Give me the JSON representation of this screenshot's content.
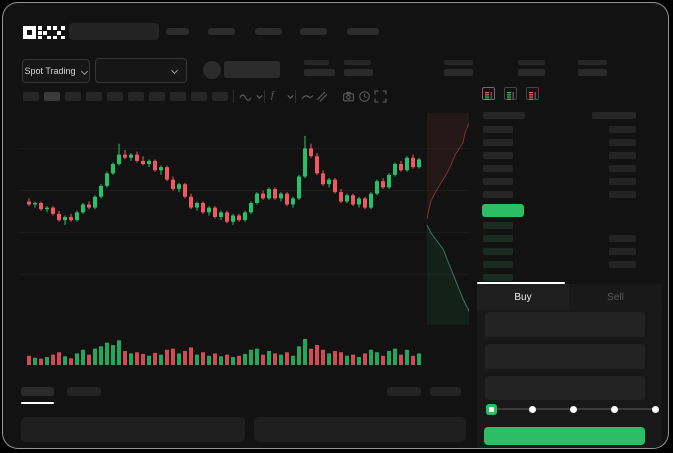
{
  "brand": "OKX",
  "header": {
    "mode_selector_label": "Spot Trading",
    "nav_placeholder_count": 5
  },
  "toolbar": {
    "timeframe_count": 10,
    "active_index": 1,
    "icons": [
      "chart-style-icon",
      "chevron-down-icon",
      "indicator-icon",
      "chevron-down-icon",
      "line-tool-icon",
      "compare-icon",
      "camera-icon",
      "history-clock-icon",
      "fullscreen-icon"
    ]
  },
  "order_book": {
    "view_toggles": [
      "book-both-view",
      "book-bids-view",
      "book-asks-view"
    ],
    "active_toggle": 0,
    "ask_rows": 6,
    "bid_rows": 5,
    "right_top_rows": 6,
    "right_bottom_rows": [
      1,
      2,
      3
    ]
  },
  "order_panel": {
    "tabs": {
      "buy": "Buy",
      "sell": "Sell",
      "active": "buy"
    },
    "input_count": 3,
    "slider": {
      "steps": 5,
      "active_index": 0
    }
  },
  "colors": {
    "up": "#26c26a",
    "down": "#f4565f",
    "accent": "#2dbd64",
    "grid": "#1d1d1d",
    "depth_ask_fill": "rgba(244,86,95,0.08)",
    "depth_ask_line": "rgba(244,86,95,0.45)",
    "depth_bid_fill": "rgba(45,189,110,0.09)",
    "depth_bid_line": "rgba(96,214,180,0.5)"
  },
  "chart_data": {
    "type": "candlestick",
    "title": "",
    "xlabel": "",
    "ylabel": "",
    "price_range": [
      0,
      100
    ],
    "gridline_prices": [
      85,
      58,
      31,
      4
    ],
    "candles": [
      [
        51,
        53,
        48,
        49
      ],
      [
        49,
        51,
        47,
        50
      ],
      [
        50,
        51,
        45,
        46
      ],
      [
        46,
        48,
        44,
        47
      ],
      [
        47,
        48,
        42,
        43
      ],
      [
        43,
        45,
        38,
        39
      ],
      [
        39,
        42,
        36,
        41
      ],
      [
        41,
        43,
        38,
        39
      ],
      [
        39,
        45,
        38,
        44
      ],
      [
        44,
        50,
        43,
        49
      ],
      [
        49,
        51,
        46,
        47
      ],
      [
        47,
        55,
        46,
        54
      ],
      [
        54,
        62,
        53,
        61
      ],
      [
        61,
        70,
        60,
        69
      ],
      [
        69,
        76,
        68,
        75
      ],
      [
        75,
        88,
        74,
        81
      ],
      [
        81,
        84,
        78,
        79
      ],
      [
        79,
        82,
        77,
        81
      ],
      [
        81,
        83,
        76,
        77
      ],
      [
        77,
        80,
        74,
        75
      ],
      [
        75,
        78,
        73,
        77
      ],
      [
        77,
        78,
        70,
        71
      ],
      [
        71,
        74,
        68,
        73
      ],
      [
        73,
        74,
        64,
        65
      ],
      [
        65,
        67,
        58,
        59
      ],
      [
        59,
        63,
        57,
        62
      ],
      [
        62,
        63,
        53,
        54
      ],
      [
        54,
        56,
        46,
        47
      ],
      [
        47,
        51,
        45,
        50
      ],
      [
        50,
        51,
        43,
        44
      ],
      [
        44,
        48,
        42,
        47
      ],
      [
        47,
        48,
        40,
        41
      ],
      [
        41,
        45,
        39,
        44
      ],
      [
        44,
        45,
        37,
        38
      ],
      [
        38,
        43,
        36,
        42
      ],
      [
        42,
        43,
        38,
        39
      ],
      [
        39,
        45,
        38,
        44
      ],
      [
        44,
        51,
        43,
        50
      ],
      [
        50,
        57,
        49,
        56
      ],
      [
        56,
        58,
        52,
        53
      ],
      [
        53,
        60,
        52,
        59
      ],
      [
        59,
        60,
        52,
        53
      ],
      [
        53,
        57,
        51,
        56
      ],
      [
        56,
        57,
        48,
        49
      ],
      [
        49,
        54,
        47,
        53
      ],
      [
        53,
        68,
        52,
        67
      ],
      [
        67,
        93,
        66,
        85
      ],
      [
        85,
        88,
        79,
        80
      ],
      [
        80,
        82,
        68,
        69
      ],
      [
        69,
        71,
        61,
        62
      ],
      [
        62,
        66,
        60,
        65
      ],
      [
        65,
        66,
        56,
        57
      ],
      [
        57,
        59,
        50,
        51
      ],
      [
        51,
        56,
        50,
        55
      ],
      [
        55,
        56,
        48,
        49
      ],
      [
        49,
        54,
        47,
        53
      ],
      [
        53,
        54,
        46,
        47
      ],
      [
        47,
        57,
        46,
        56
      ],
      [
        56,
        65,
        55,
        64
      ],
      [
        64,
        66,
        59,
        60
      ],
      [
        60,
        69,
        59,
        68
      ],
      [
        68,
        76,
        67,
        75
      ],
      [
        75,
        77,
        70,
        71
      ],
      [
        71,
        80,
        70,
        79
      ],
      [
        79,
        81,
        72,
        73
      ],
      [
        73,
        79,
        72,
        78
      ]
    ],
    "volumes": [
      30,
      22,
      18,
      25,
      35,
      45,
      28,
      20,
      40,
      55,
      35,
      60,
      70,
      85,
      75,
      95,
      50,
      40,
      45,
      38,
      30,
      42,
      35,
      55,
      60,
      40,
      50,
      65,
      35,
      45,
      30,
      40,
      28,
      35,
      25,
      30,
      38,
      55,
      60,
      35,
      50,
      40,
      35,
      45,
      30,
      70,
      100,
      60,
      75,
      55,
      40,
      50,
      45,
      30,
      35,
      25,
      40,
      55,
      45,
      30,
      50,
      60,
      35,
      55,
      30,
      40
    ],
    "depth": {
      "asks_line": [
        [
          456,
          6
        ],
        [
          450,
          16
        ],
        [
          446,
          26
        ],
        [
          444,
          36
        ],
        [
          436,
          48
        ],
        [
          432,
          58
        ],
        [
          428,
          66
        ],
        [
          422,
          76
        ],
        [
          416,
          86
        ],
        [
          412,
          94
        ],
        [
          410,
          102
        ],
        [
          408,
          112
        ]
      ],
      "bids_line": [
        [
          408,
          118
        ],
        [
          412,
          126
        ],
        [
          418,
          134
        ],
        [
          424,
          142
        ],
        [
          428,
          152
        ],
        [
          432,
          162
        ],
        [
          436,
          172
        ],
        [
          440,
          182
        ],
        [
          444,
          192
        ],
        [
          448,
          200
        ],
        [
          452,
          208
        ],
        [
          456,
          216
        ]
      ]
    }
  }
}
